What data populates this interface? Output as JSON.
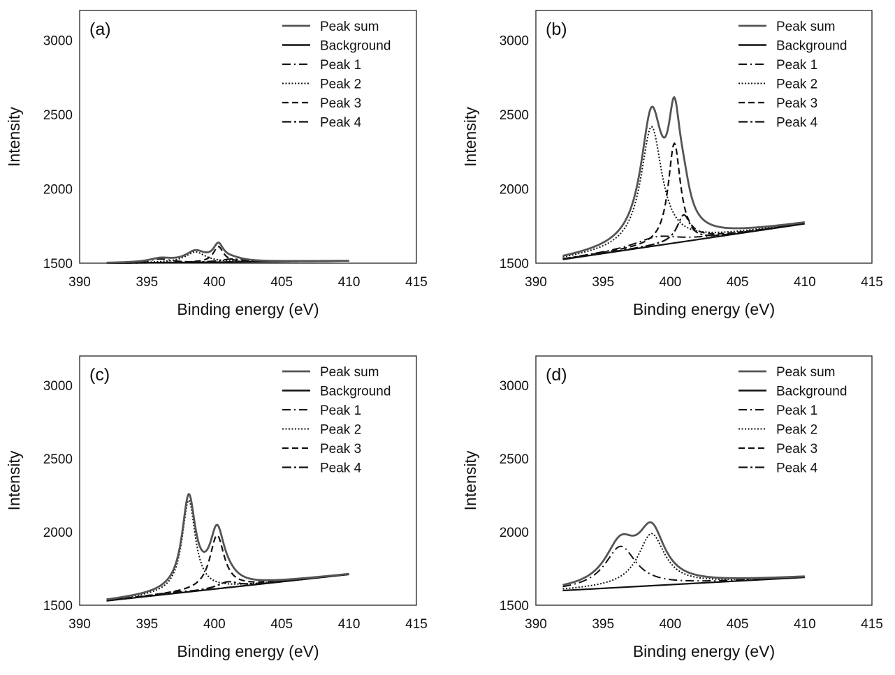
{
  "legend_entries": [
    "Peak sum",
    "Background",
    "Peak 1",
    "Peak 2",
    "Peak 3",
    "Peak 4"
  ],
  "colors": {
    "peak_sum": "#555555",
    "background": "#111111",
    "peaks": "#111111",
    "frame": "#222222",
    "page": "#ffffff"
  },
  "chart_data": [
    {
      "type": "line",
      "panel": "(a)",
      "xlabel": "Binding energy (eV)",
      "ylabel": "Intensity",
      "xlim": [
        390,
        415
      ],
      "ylim": [
        1500,
        3200
      ],
      "xticks": [
        390,
        395,
        400,
        405,
        410,
        415
      ],
      "yticks": [
        1500,
        2000,
        2500,
        3000
      ],
      "x_range": [
        392,
        410
      ],
      "background": [
        1500,
        1515
      ],
      "peaks": [
        {
          "name": "Peak 1",
          "center": 396.0,
          "height": 25,
          "width": 1.0
        },
        {
          "name": "Peak 2",
          "center": 398.6,
          "height": 70,
          "width": 0.9
        },
        {
          "name": "Peak 3",
          "center": 400.3,
          "height": 105,
          "width": 0.45
        },
        {
          "name": "Peak 4",
          "center": 401.3,
          "height": 20,
          "width": 1.0
        }
      ],
      "legend_position": "top-right"
    },
    {
      "type": "line",
      "panel": "(b)",
      "xlabel": "Binding energy (eV)",
      "ylabel": "Intensity",
      "xlim": [
        390,
        415
      ],
      "ylim": [
        1500,
        3200
      ],
      "xticks": [
        390,
        395,
        400,
        405,
        410,
        415
      ],
      "yticks": [
        1500,
        2000,
        2500,
        3000
      ],
      "x_range": [
        392,
        410
      ],
      "background": [
        1525,
        1765
      ],
      "peaks": [
        {
          "name": "Peak 1",
          "center": 399.0,
          "height": 60,
          "width": 2.0
        },
        {
          "name": "Peak 2",
          "center": 398.6,
          "height": 805,
          "width": 0.95
        },
        {
          "name": "Peak 3",
          "center": 400.3,
          "height": 670,
          "width": 0.55
        },
        {
          "name": "Peak 4",
          "center": 401.0,
          "height": 180,
          "width": 0.6
        }
      ],
      "legend_position": "top-right"
    },
    {
      "type": "line",
      "panel": "(c)",
      "xlabel": "Binding energy (eV)",
      "ylabel": "Intensity",
      "xlim": [
        390,
        415
      ],
      "ylim": [
        1500,
        3200
      ],
      "xticks": [
        390,
        395,
        400,
        405,
        410,
        415
      ],
      "yticks": [
        1500,
        2000,
        2500,
        3000
      ],
      "x_range": [
        392,
        410
      ],
      "background": [
        1530,
        1710
      ],
      "peaks": [
        {
          "name": "Peak 1",
          "center": 397.0,
          "height": 10,
          "width": 1.5
        },
        {
          "name": "Peak 2",
          "center": 398.1,
          "height": 625,
          "width": 0.6
        },
        {
          "name": "Peak 3",
          "center": 400.2,
          "height": 365,
          "width": 0.65
        },
        {
          "name": "Peak 4",
          "center": 401.0,
          "height": 40,
          "width": 0.9
        }
      ],
      "legend_position": "top-right"
    },
    {
      "type": "line",
      "panel": "(d)",
      "xlabel": "Binding energy (eV)",
      "ylabel": "Intensity",
      "xlim": [
        390,
        415
      ],
      "ylim": [
        1500,
        3200
      ],
      "xticks": [
        390,
        395,
        400,
        405,
        410,
        415
      ],
      "yticks": [
        1500,
        2000,
        2500,
        3000
      ],
      "x_range": [
        392,
        410
      ],
      "background": [
        1600,
        1690
      ],
      "peaks": [
        {
          "name": "Peak 1",
          "center": 396.3,
          "height": 280,
          "width": 1.4
        },
        {
          "name": "Peak 2",
          "center": 398.6,
          "height": 355,
          "width": 1.2
        },
        {
          "name": "Peak 3",
          "center": 399.0,
          "height": 0,
          "width": 1.0
        },
        {
          "name": "Peak 4",
          "center": 401.0,
          "height": 0,
          "width": 1.0
        }
      ],
      "legend_position": "top-right"
    }
  ]
}
